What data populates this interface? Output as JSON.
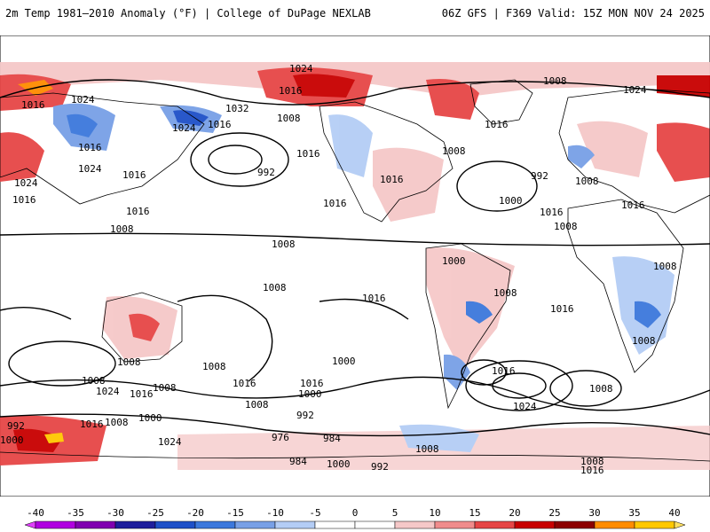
{
  "header": {
    "left": "2m Temp 1981–2010 Anomaly (°F) | College of DuPage NEXLAB",
    "right": "06Z GFS | F369 Valid: 15Z MON NOV 24 2025"
  },
  "map": {
    "isobar_labels": [
      "1024",
      "1016",
      "1016",
      "1024",
      "1016",
      "1032",
      "1016",
      "1024",
      "1008",
      "992",
      "1016",
      "1024",
      "1016",
      "1016",
      "1016",
      "1024",
      "1008",
      "1016",
      "1016",
      "1008",
      "1008",
      "1016",
      "1008",
      "1008",
      "1000",
      "1008",
      "1024",
      "1016",
      "1008",
      "1016",
      "1000",
      "1016",
      "1008",
      "992",
      "976",
      "984",
      "984",
      "992",
      "1000",
      "1016",
      "1008",
      "1000",
      "1024",
      "1008",
      "992",
      "1000",
      "1016",
      "1008",
      "1016",
      "1024",
      "1008",
      "1008",
      "1016",
      "1008",
      "1008",
      "1016",
      "1008",
      "992",
      "1000",
      "1016",
      "1008",
      "1000"
    ],
    "colors": {
      "ocean": "#ffffff",
      "coast": "#000000",
      "isobar": "#000000"
    }
  },
  "colorbar": {
    "ticks": [
      "-40",
      "-35",
      "-30",
      "-25",
      "-20",
      "-15",
      "-10",
      "-5",
      "0",
      "5",
      "10",
      "15",
      "20",
      "25",
      "30",
      "35",
      "40"
    ],
    "colors": [
      "#e040fb",
      "#b000e0",
      "#8000b0",
      "#1e1e9c",
      "#1e50c8",
      "#3c78dc",
      "#78a0e6",
      "#b4cdf5",
      "#ffffff",
      "#ffffff",
      "#f5c8c8",
      "#f08c8c",
      "#e64646",
      "#c80000",
      "#8c0000",
      "#ff8c00",
      "#ffc800",
      "#ffe060"
    ]
  }
}
